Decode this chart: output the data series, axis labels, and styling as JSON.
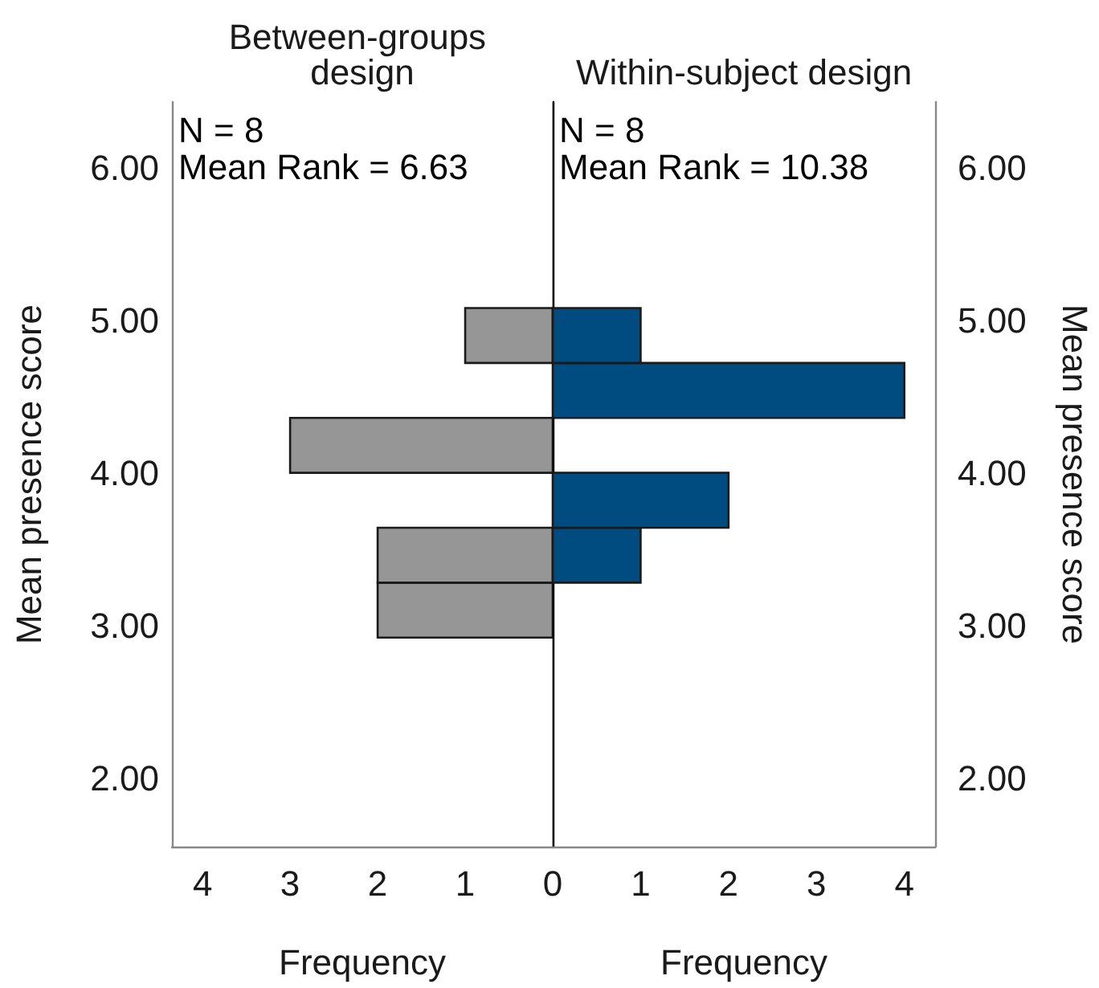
{
  "chart_data": [
    {
      "type": "histogram",
      "orientation": "horizontal",
      "title": "Between-groups design",
      "xlabel": "Frequency",
      "ylabel": "Mean presence score",
      "bins": [
        2.92,
        3.28,
        3.64,
        4.0,
        4.36,
        4.72,
        5.08
      ],
      "values": [
        2,
        2,
        0,
        3,
        0,
        1
      ],
      "color": "#969696",
      "xlim": [
        4.35,
        0
      ],
      "xticks": [
        4,
        3,
        2,
        1
      ],
      "ylim": [
        1.55,
        6.43
      ],
      "yticks": [
        {
          "value": 2,
          "label": "2.00"
        },
        {
          "value": 3,
          "label": "3.00"
        },
        {
          "value": 4,
          "label": "4.00"
        },
        {
          "value": 5,
          "label": "5.00"
        },
        {
          "value": 6,
          "label": "6.00"
        }
      ],
      "annotations": [
        "N = 8",
        "Mean Rank = 6.63"
      ]
    },
    {
      "type": "histogram",
      "orientation": "horizontal",
      "title": "Within-subject design",
      "xlabel": "Frequency",
      "ylabel": "Mean presence score",
      "bins": [
        2.92,
        3.28,
        3.64,
        4.0,
        4.36,
        4.72,
        5.08
      ],
      "values": [
        0,
        1,
        2,
        0,
        4,
        1
      ],
      "color": "#004b80",
      "xlim": [
        0,
        4.35
      ],
      "xticks": [
        0,
        1,
        2,
        3,
        4
      ],
      "ylim": [
        1.55,
        6.43
      ],
      "yticks": [
        {
          "value": 2,
          "label": "2.00"
        },
        {
          "value": 3,
          "label": "3.00"
        },
        {
          "value": 4,
          "label": "4.00"
        },
        {
          "value": 5,
          "label": "5.00"
        },
        {
          "value": 6,
          "label": "6.00"
        }
      ],
      "annotations": [
        "N = 8",
        "Mean Rank = 10.38"
      ]
    }
  ]
}
